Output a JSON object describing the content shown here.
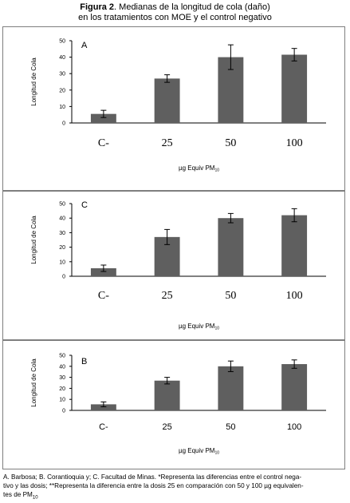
{
  "figure": {
    "title_bold": "Figura 2",
    "title_rest": ". Medianas de la longitud de cola (daño)",
    "title_line2": "en los tratamientos con MOE y el control negativo"
  },
  "chart_data": [
    {
      "type": "bar",
      "panel_label": "A",
      "categories": [
        "C-",
        "25",
        "50",
        "100"
      ],
      "values": [
        5.5,
        27,
        40,
        41.5
      ],
      "errors": [
        2.2,
        2.3,
        7.5,
        3.8
      ],
      "ylabel": "Longitud de Cola",
      "xlabel": "µg Equiv PM",
      "xlabel_sub": "10",
      "ylim": [
        0,
        50
      ],
      "yticks": [
        "0",
        "10",
        "20",
        "30",
        "40",
        "50"
      ],
      "bar_color": "#5f5f5f",
      "grid": false
    },
    {
      "type": "bar",
      "panel_label": "C",
      "categories": [
        "C-",
        "25",
        "50",
        "100"
      ],
      "values": [
        5.5,
        27,
        40,
        42
      ],
      "errors": [
        2.2,
        5.2,
        3.2,
        4.5
      ],
      "ylabel": "Longitud de Cola",
      "xlabel": "µg Equiv PM",
      "xlabel_sub": "10",
      "ylim": [
        0,
        50
      ],
      "yticks": [
        "0",
        "10",
        "20",
        "30",
        "40",
        "50"
      ],
      "bar_color": "#5f5f5f",
      "grid": false
    },
    {
      "type": "bar",
      "panel_label": "B",
      "categories": [
        "C-",
        "25",
        "50",
        "100"
      ],
      "values": [
        5.5,
        27,
        40,
        42
      ],
      "errors": [
        2.2,
        3.0,
        4.8,
        3.8
      ],
      "ylabel": "Longitud de Cola",
      "xlabel": "µg Equiv PM",
      "xlabel_sub": "10",
      "ylim": [
        0,
        50
      ],
      "yticks": [
        "0",
        "10",
        "20",
        "30",
        "40",
        "50"
      ],
      "bar_color": "#5f5f5f",
      "grid": false
    }
  ],
  "caption": {
    "line1": "A. Barbosa; B. Corantioquia y; C. Facultad de Minas. *Representa las diferencias entre el control nega-",
    "line2": "tivo y las dosis; **Representa la diferencia entre la dosis 25 en comparación con 50 y 100 µg equivalen-",
    "line3": "tes de PM",
    "line3_sub": "10"
  }
}
